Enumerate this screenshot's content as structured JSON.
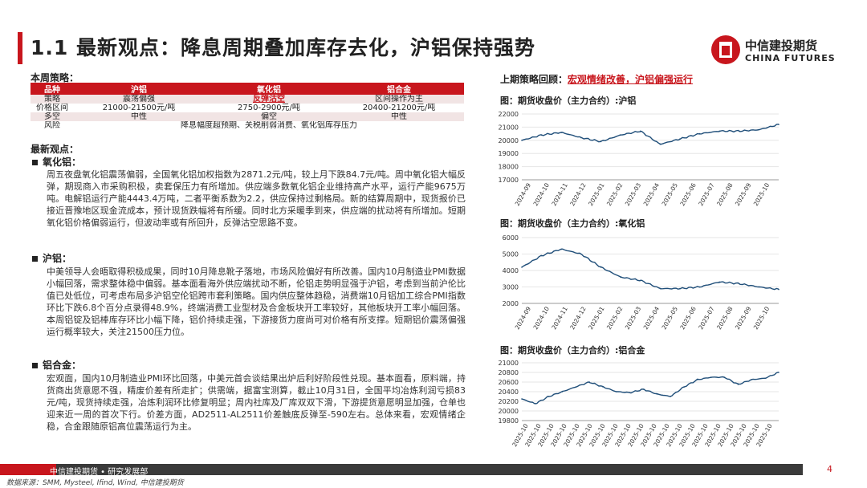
{
  "header": {
    "title": "1.1 最新观点：降息周期叠加库存去化，沪铝保持强势",
    "logo_cn": "中信建投期货",
    "logo_en": "CHINA FUTURES"
  },
  "strategy": {
    "label": "本周策略：",
    "headers": [
      "品种",
      "沪铝",
      "氧化铝",
      "铝合金"
    ],
    "rows": [
      {
        "k": "策略",
        "al": "震荡偏强",
        "ao": "反弹沽空",
        "ad": "区间操作为主"
      },
      {
        "k": "价格区间",
        "al": "21000-21500元/吨",
        "ao": "2750-2900元/吨",
        "ad": "20400-21200元/吨"
      },
      {
        "k": "多空",
        "al": "中性",
        "ao": "偏空",
        "ad": "中性"
      }
    ],
    "risk_key": "风险",
    "risk_val": "降息幅度超预期、关税削弱消费、氧化铝库存压力"
  },
  "views": {
    "label": "最新观点：",
    "sections": [
      {
        "h": "氧化铝：",
        "p": "周五夜盘氧化铝震荡偏弱，全国氧化铝加权指数为2871.2元/吨，较上月下跌84.7元/吨。周中氧化铝大幅反弹，期现商入市采购积极，卖套保压力有所增加。供应端多数氧化铝企业维持高产水平，运行产能9675万吨。电解铝运行产能4443.4万吨，二者平衡系数为2.2，供应保持过剩格局。新的结算周期中，现货报价已接近晋豫地区现金流成本，预计现货跌幅将有所缓。同时北方采暖季到来，供应端的扰动将有所增加。短期氧化铝价格偏弱运行，但波动率或有所回升，反弹沽空思路不变。"
      },
      {
        "h": "沪铝：",
        "p": "中美领导人会晤取得积极成果，同时10月降息靴子落地，市场风险偏好有所改善。国内10月制造业PMI数据小幅回落，需求整体稳中偏弱。基本面看海外供应端扰动不断，伦铝走势明显强于沪铝，考虑到当前沪伦比值已处低位，可考虑布局多沪铝空伦铝跨市套利策略。国内供应整体趋稳，消费端10月铝加工综合PMI指数环比下跌6.8个百分点录得48.9%，终端消费工业型材及合金板块开工率较好，其他板块开工率小幅回落。本周铝锭及铝棒库存环比小幅下降，铝价持续走强，下游接货力度尚可对价格有所支撑。短期铝价震荡偏强运行概率较大，关注21500压力位。"
      },
      {
        "h": "铝合金：",
        "p": "宏观面，国内10月制造业PMI环比回落，中美元首会谈结果出炉后利好阶段性兑现。基本面看，原料端，持货商出货意愿不强，精废价差有所走扩；供需端，据富宝测算，截止10月31日，全国平均冶炼利润亏损83元/吨，现货持续走强，冶炼利润环比修复明显；周内社库及厂库双双下滑，下游提货意愿明显加强，仓单也迎来近一周的首次下行。价差方面，AD2511-AL2511价差触底反弹至-590左右。总体来看，宏观情绪企稳，合金跟随原铝高位震荡运行为主。"
      }
    ]
  },
  "recap": {
    "label": "上期策略回顾：",
    "value": "宏观情绪改善，沪铝偏强运行"
  },
  "chart_data": [
    {
      "type": "line",
      "title": "图：期货收盘价（主力合约）:沪铝",
      "x": [
        "2024-09",
        "2024-10",
        "2024-11",
        "2024-12",
        "2025-01",
        "2025-02",
        "2025-03",
        "2025-04",
        "2025-05",
        "2025-06",
        "2025-07",
        "2025-08",
        "2025-09",
        "2025-10"
      ],
      "values": [
        20000,
        20400,
        20600,
        20200,
        19900,
        20400,
        20700,
        19700,
        20100,
        20500,
        20700,
        20700,
        20800,
        21200
      ],
      "ylim": [
        17000,
        22000
      ],
      "yticks": [
        17000,
        18000,
        19000,
        20000,
        21000,
        22000
      ],
      "color": "#1f4e79"
    },
    {
      "type": "line",
      "title": "图：期货收盘价（主力合约）:氧化铝",
      "x": [
        "2024-09",
        "2024-10",
        "2024-11",
        "2024-12",
        "2025-01",
        "2025-02",
        "2025-03",
        "2025-04",
        "2025-05",
        "2025-06",
        "2025-07",
        "2025-08",
        "2025-09",
        "2025-10"
      ],
      "values": [
        4200,
        4900,
        5300,
        5000,
        4200,
        3600,
        3400,
        2900,
        2900,
        3000,
        3300,
        3200,
        3000,
        2850
      ],
      "ylim": [
        2000,
        6000
      ],
      "yticks": [
        2000,
        3000,
        4000,
        5000,
        6000
      ],
      "color": "#1f4e79"
    },
    {
      "type": "line",
      "title": "图：期货收盘价（主力合约）:铝合金",
      "x": [
        "2025-10",
        "2025-10",
        "2025-10",
        "2025-10",
        "2025-10",
        "2025-10",
        "2025-10",
        "2025-10",
        "2025-10",
        "2025-10",
        "2025-10",
        "2025-10",
        "2025-10",
        "2025-10",
        "2025-10",
        "2025-10",
        "2025-10",
        "2025-10",
        "2025-10",
        "2025-10"
      ],
      "values": [
        20250,
        20150,
        20300,
        20400,
        20500,
        20600,
        20500,
        20400,
        20380,
        20450,
        20350,
        20300,
        20500,
        20650,
        20700,
        20700,
        20550,
        20650,
        20680,
        20800
      ],
      "ylim": [
        19800,
        21000
      ],
      "yticks": [
        19800,
        20000,
        20200,
        20400,
        20600,
        20800,
        21000
      ],
      "color": "#1f4e79"
    }
  ],
  "chart_titles": [
    "图：期货收盘价（主力合约）:沪铝",
    "图：期货收盘价（主力合约）:氧化铝",
    "图：期货收盘价（主力合约）:铝合金"
  ],
  "footer": {
    "org": "中信建投期货 • 研究发展部",
    "page": "4",
    "source": "数据来源：SMM, Mysteel, Ifind, Wind, 中信建投期货"
  }
}
